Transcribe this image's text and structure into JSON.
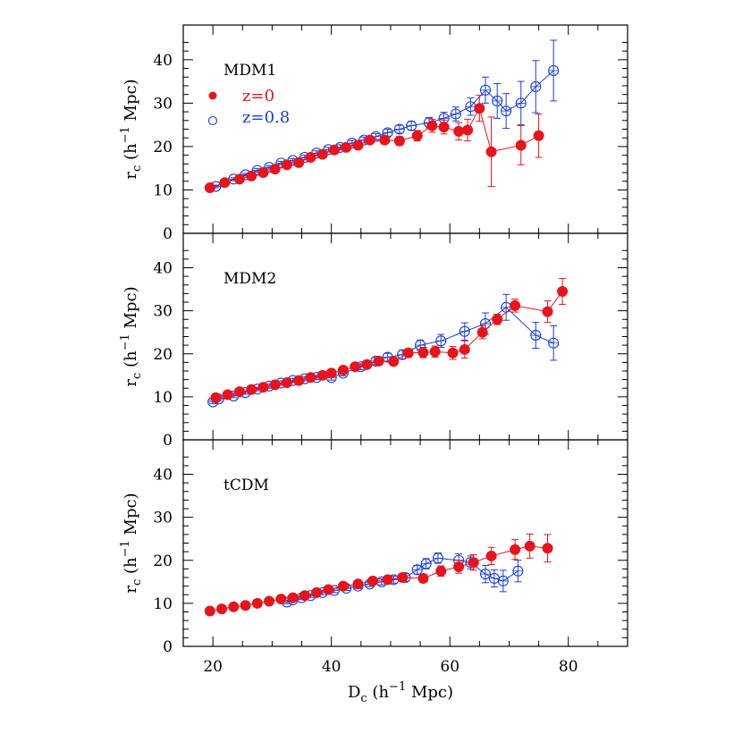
{
  "chart_data": {
    "type": "scatter",
    "xlabel": "D",
    "xlabel_sub": "c",
    "xlabel_units": " (h",
    "xlabel_sup": "−1",
    "xlabel_tail": " Mpc)",
    "ylabel": "r",
    "ylabel_sub": "c",
    "ylabel_units": " (h",
    "ylabel_sup": "−1",
    "ylabel_tail": " Mpc)",
    "xlim": [
      15,
      90
    ],
    "ylim": [
      0,
      48
    ],
    "x_ticks": [
      20,
      40,
      60,
      80
    ],
    "x_tick_labels": [
      "20",
      "40",
      "60",
      "80"
    ],
    "y_ticks": [
      0,
      10,
      20,
      30,
      40
    ],
    "y_tick_labels": [
      "0",
      "10",
      "20",
      "30",
      "40"
    ],
    "grid": false,
    "legend": {
      "placement": "top-left",
      "entries": [
        {
          "label": "z=0",
          "color": "#e8141c",
          "marker": "filled-circle"
        },
        {
          "label": "z=0.8",
          "color": "#1a3fd6",
          "marker": "open-circle"
        }
      ]
    },
    "panels": [
      {
        "label": "MDM1",
        "series": [
          {
            "name": "z=0",
            "x": [
              19.5,
              22,
              24.5,
              26.5,
              28.5,
              30.5,
              32.5,
              34.5,
              36.5,
              38.5,
              40.5,
              42.5,
              44.5,
              46.5,
              49,
              51.5,
              54.5,
              57,
              59,
              61.5,
              63,
              65,
              67,
              72,
              75
            ],
            "y": [
              10.5,
              11.7,
              12.5,
              13.2,
              14,
              14.8,
              15.8,
              16.3,
              17.5,
              18.2,
              19.2,
              19.8,
              20.3,
              21.5,
              21.5,
              21.3,
              22.5,
              24.8,
              24.5,
              23.5,
              23.8,
              28.8,
              18.8,
              20.3,
              22.5
            ],
            "err": [
              0.3,
              0.3,
              0.3,
              0.3,
              0.3,
              0.4,
              0.4,
              0.4,
              0.4,
              0.5,
              0.5,
              0.5,
              0.6,
              0.6,
              0.8,
              1,
              1.2,
              1.5,
              1.6,
              2,
              2.5,
              3,
              8,
              4.5,
              5
            ]
          },
          {
            "name": "z=0.8",
            "x": [
              20.5,
              23.5,
              25.5,
              27.5,
              29.5,
              31.5,
              33.5,
              35.5,
              37.5,
              39.5,
              41.5,
              43.5,
              45.5,
              47.5,
              49.5,
              51.5,
              53.5,
              56.5,
              59,
              61,
              63.5,
              66,
              68,
              69.5,
              72,
              74.5,
              77.5
            ],
            "y": [
              10.8,
              12.5,
              13.5,
              14.5,
              15.2,
              16.2,
              16.8,
              17.5,
              18.5,
              19.3,
              19.8,
              20.8,
              21.5,
              22.3,
              23.2,
              24,
              24.8,
              25.5,
              26.5,
              27.5,
              29.2,
              33,
              30.5,
              28.2,
              30,
              33.8,
              37.5
            ],
            "err": [
              0.3,
              0.3,
              0.3,
              0.4,
              0.4,
              0.4,
              0.4,
              0.5,
              0.5,
              0.5,
              0.6,
              0.6,
              0.7,
              0.7,
              0.8,
              0.9,
              1,
              1.2,
              1.4,
              1.6,
              2,
              3,
              4,
              4,
              5,
              6,
              7
            ]
          }
        ]
      },
      {
        "label": "MDM2",
        "series": [
          {
            "name": "z=0",
            "x": [
              20.5,
              22.5,
              24.5,
              26.5,
              28.5,
              30.5,
              32.5,
              34.5,
              36.5,
              38.5,
              40,
              42,
              44,
              46,
              48,
              50.5,
              53,
              55.5,
              57.5,
              60.5,
              62.5,
              65.5,
              68,
              71,
              76.5,
              79
            ],
            "y": [
              9.8,
              10.5,
              11.2,
              11.7,
              12.2,
              12.8,
              13.3,
              13.8,
              14.5,
              15,
              15.5,
              16.2,
              17,
              17.5,
              18.3,
              18.2,
              20.2,
              20.3,
              20.5,
              20.2,
              21,
              25,
              28,
              31.2,
              29.8,
              34.5
            ],
            "err": [
              0.4,
              0.4,
              0.4,
              0.4,
              0.4,
              0.4,
              0.5,
              0.5,
              0.5,
              0.5,
              0.5,
              0.6,
              0.6,
              0.6,
              0.7,
              0.8,
              1,
              1.2,
              1.3,
              1.5,
              2,
              1.5,
              1.2,
              1.5,
              2.5,
              3
            ]
          },
          {
            "name": "z=0.8",
            "x": [
              20,
              21,
              23.5,
              25.5,
              27.5,
              29.5,
              31.5,
              33.5,
              35.5,
              37.5,
              40,
              42,
              45,
              47.5,
              49.5,
              52,
              55,
              58.5,
              62.5,
              66,
              69.5,
              74.5,
              77.5
            ],
            "y": [
              8.8,
              9.5,
              10.2,
              11,
              11.8,
              12.5,
              13.2,
              13.8,
              14.2,
              14.5,
              14.5,
              15.5,
              17,
              18.3,
              19.2,
              19.8,
              22,
              23,
              25.2,
              27,
              30.8,
              24.3,
              22.5
            ],
            "err": [
              0.4,
              0.4,
              0.4,
              0.4,
              0.4,
              0.5,
              0.5,
              0.5,
              0.5,
              0.5,
              0.6,
              0.6,
              0.7,
              0.8,
              0.9,
              1,
              1.2,
              1.5,
              2,
              2.5,
              3,
              3,
              4
            ]
          }
        ]
      },
      {
        "label": "tCDM",
        "series": [
          {
            "name": "z=0",
            "x": [
              19.5,
              21.5,
              23.5,
              25.5,
              27.5,
              29.5,
              31.5,
              33.5,
              35.5,
              37.5,
              39.5,
              42,
              44.5,
              47,
              49.5,
              52,
              55.5,
              58.5,
              61.5,
              64,
              67,
              71,
              73.5,
              76.5
            ],
            "y": [
              8.2,
              8.7,
              9.2,
              9.5,
              10,
              10.5,
              11,
              11.3,
              11.8,
              12.5,
              13.2,
              14,
              14.5,
              15.2,
              15.5,
              16,
              15.8,
              17.5,
              18.5,
              19.5,
              21,
              22.5,
              23.3,
              22.8
            ],
            "err": [
              0.3,
              0.3,
              0.3,
              0.3,
              0.3,
              0.3,
              0.4,
              0.4,
              0.4,
              0.4,
              0.5,
              0.5,
              0.6,
              0.7,
              0.8,
              0.9,
              1,
              1.2,
              1.5,
              1.8,
              2,
              2.3,
              2.8,
              3.2
            ]
          },
          {
            "name": "z=0.8",
            "x": [
              32.5,
              33.5,
              35,
              36.5,
              38.5,
              40.5,
              42.5,
              44.5,
              46.5,
              48.5,
              50.5,
              52.5,
              54.5,
              56,
              58,
              61.5,
              63.5,
              66,
              67.5,
              69,
              71.5
            ],
            "y": [
              10.3,
              10.8,
              11.3,
              11.8,
              12.5,
              13,
              13.5,
              14,
              14.5,
              15,
              15.5,
              16,
              17.8,
              19.2,
              20.5,
              20,
              19.5,
              16.8,
              15.8,
              15.2,
              17.5
            ],
            "err": [
              0.4,
              0.4,
              0.4,
              0.4,
              0.5,
              0.5,
              0.5,
              0.6,
              0.6,
              0.7,
              0.8,
              0.9,
              1,
              1.2,
              1.2,
              1.5,
              1.5,
              2,
              2,
              2.5,
              2.5
            ]
          }
        ]
      }
    ]
  }
}
